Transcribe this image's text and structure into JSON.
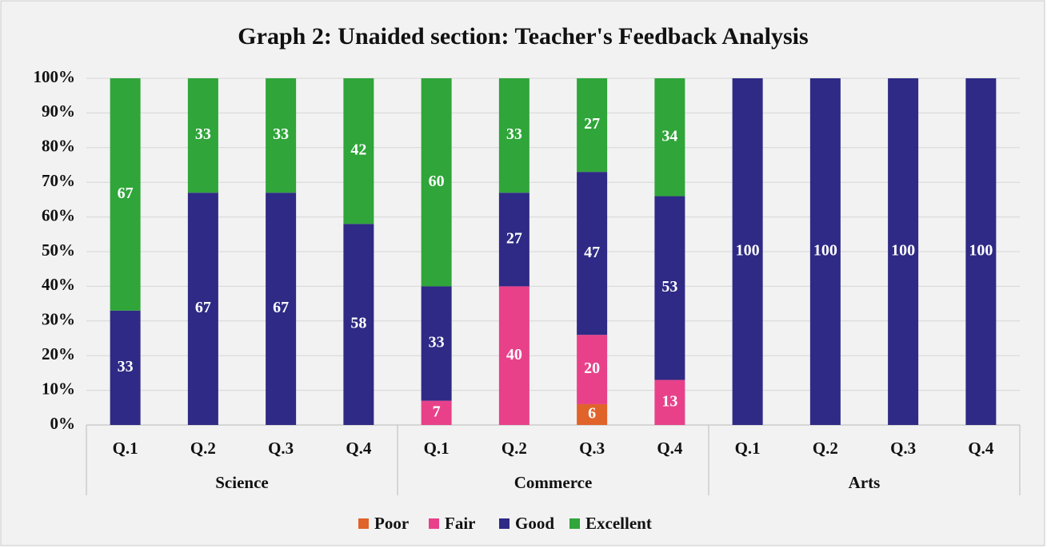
{
  "chart_data": {
    "type": "stacked_bar",
    "title": "Graph 2: Unaided section: Teacher's Feedback Analysis",
    "categories": [
      "Q.1",
      "Q.2",
      "Q.3",
      "Q.4",
      "Q.1",
      "Q.2",
      "Q.3",
      "Q.4",
      "Q.1",
      "Q.2",
      "Q.3",
      "Q.4"
    ],
    "groups": [
      "Science",
      "Commerce",
      "Arts"
    ],
    "series": [
      {
        "name": "Poor",
        "color": "#e0632a",
        "values": [
          null,
          null,
          null,
          null,
          null,
          null,
          6,
          null,
          null,
          null,
          null,
          null
        ]
      },
      {
        "name": "Fair",
        "color": "#e8418a",
        "values": [
          null,
          null,
          null,
          null,
          7,
          40,
          20,
          13,
          null,
          null,
          null,
          null
        ]
      },
      {
        "name": "Good",
        "color": "#2e2a85",
        "values": [
          33,
          67,
          67,
          58,
          33,
          27,
          47,
          53,
          100,
          100,
          100,
          100
        ]
      },
      {
        "name": "Excellent",
        "color": "#2fa53a",
        "values": [
          67,
          33,
          33,
          42,
          60,
          33,
          27,
          34,
          null,
          null,
          null,
          null
        ]
      }
    ],
    "ylim": [
      0,
      100
    ],
    "yticks": [
      {
        "value": 0,
        "label": "0%"
      },
      {
        "value": 10,
        "label": "10%"
      },
      {
        "value": 20,
        "label": "20%"
      },
      {
        "value": 30,
        "label": "30%"
      },
      {
        "value": 40,
        "label": "40%"
      },
      {
        "value": 50,
        "label": "50%"
      },
      {
        "value": 60,
        "label": "60%"
      },
      {
        "value": 70,
        "label": "70%"
      },
      {
        "value": 80,
        "label": "80%"
      },
      {
        "value": 90,
        "label": "90%"
      },
      {
        "value": 100,
        "label": "100%"
      }
    ],
    "grid": true,
    "legend": "bottom"
  }
}
